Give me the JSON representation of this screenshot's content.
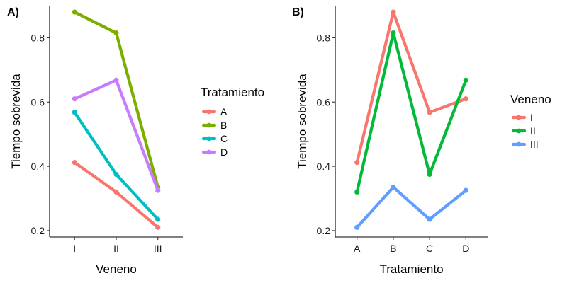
{
  "chart_data": [
    {
      "type": "line",
      "panel_label": "A)",
      "categories": [
        "I",
        "II",
        "III"
      ],
      "xlabel": "Veneno",
      "ylabel": "Tiempo sobrevida",
      "ylim": [
        0.18,
        0.9
      ],
      "yticks": [
        0.2,
        0.4,
        0.6,
        0.8
      ],
      "grid": false,
      "legend": {
        "title": "Tratamiento",
        "placement": "right"
      },
      "series": [
        {
          "name": "A",
          "color": "#F8766D",
          "values": [
            0.412,
            0.32,
            0.21
          ]
        },
        {
          "name": "B",
          "color": "#7CAE00",
          "values": [
            0.88,
            0.815,
            0.335
          ]
        },
        {
          "name": "C",
          "color": "#00BFC4",
          "values": [
            0.568,
            0.375,
            0.235
          ]
        },
        {
          "name": "D",
          "color": "#C77CFF",
          "values": [
            0.61,
            0.668,
            0.325
          ]
        }
      ]
    },
    {
      "type": "line",
      "panel_label": "B)",
      "categories": [
        "A",
        "B",
        "C",
        "D"
      ],
      "xlabel": "Tratamiento",
      "ylabel": "Tiempo sobrevida",
      "ylim": [
        0.18,
        0.9
      ],
      "yticks": [
        0.2,
        0.4,
        0.6,
        0.8
      ],
      "grid": false,
      "legend": {
        "title": "Veneno",
        "placement": "right"
      },
      "series": [
        {
          "name": "I",
          "color": "#F8766D",
          "values": [
            0.412,
            0.88,
            0.568,
            0.61
          ]
        },
        {
          "name": "II",
          "color": "#00BA38",
          "values": [
            0.32,
            0.815,
            0.375,
            0.668
          ]
        },
        {
          "name": "III",
          "color": "#619CFF",
          "values": [
            0.21,
            0.335,
            0.235,
            0.325
          ]
        }
      ]
    }
  ]
}
